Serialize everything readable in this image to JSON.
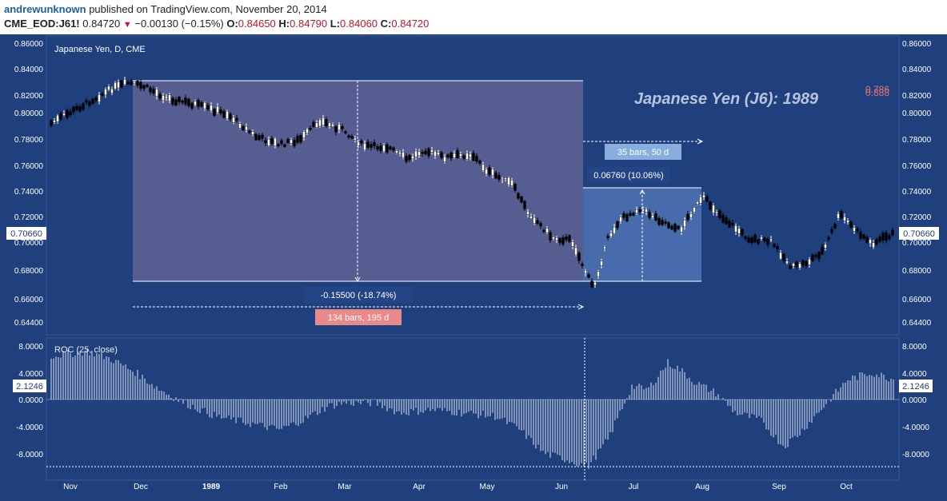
{
  "header": {
    "author": "andrewunknown",
    "published": "published on TradingView.com, November 20, 2014",
    "symbol": "CME_EOD:J61!",
    "last": "0.84720",
    "change_arrow": "▼",
    "change": "−0.00130 (−0.15%)",
    "o_label": "O:",
    "o_value": "0.84650",
    "h_label": "H:",
    "h_value": "0.84790",
    "l_label": "L:",
    "l_value": "0.84060",
    "c_label": "C:",
    "c_value": "0.84720"
  },
  "chart": {
    "legend": "Japanese Yen, D, CME",
    "watermark": "Japanese Yen (J6): 1989",
    "overlay_small": [
      "0.786",
      "0.888"
    ],
    "price_ticks": [
      "0.86000",
      "0.84000",
      "0.82000",
      "0.80000",
      "0.78000",
      "0.76000",
      "0.74000",
      "0.72000",
      "0.70000",
      "0.68000",
      "0.66000",
      "0.64400"
    ],
    "current_price_label": "0.70660",
    "osc_ticks": [
      "8.0000",
      "4.0000",
      "0.0000",
      "-4.0000",
      "-8.0000"
    ],
    "osc_current_label": "2.1246",
    "osc_legend": "ROC (25, close)",
    "months": [
      "Nov",
      "Dec",
      "1989",
      "Feb",
      "Mar",
      "Apr",
      "May",
      "Jun",
      "Jul",
      "Aug",
      "Sep",
      "Oct"
    ],
    "annotations": {
      "decline_price": "-0.15500 (-18.74%)",
      "decline_bars": "134 bars, 195 d",
      "rally_price": "0.06760 (10.06%)",
      "rally_bars": "35 bars, 50 d"
    },
    "colors": {
      "background": "#1f3f7d",
      "up_candle": "#ffffff",
      "down_candle": "#000000",
      "decline_box": "#5a5f93",
      "rally_box": "#4b6fae",
      "decline_label_bg": "#e8898a",
      "rally_label_bg": "#87aedd",
      "watermark": "#b8c4dd",
      "overlay_small": "#e07575"
    }
  },
  "chart_data": {
    "type": "candlestick",
    "title": "Japanese Yen, D, CME",
    "ylim": [
      0.644,
      0.86
    ],
    "approx_closes": [
      {
        "x": "Nov",
        "y": 0.794
      },
      {
        "x": "Nov-mid",
        "y": 0.808
      },
      {
        "x": "Dec",
        "y": 0.826
      },
      {
        "x": "Dec-mid",
        "y": 0.812
      },
      {
        "x": "1989",
        "y": 0.803
      },
      {
        "x": "Jan-mid",
        "y": 0.788
      },
      {
        "x": "Feb",
        "y": 0.772
      },
      {
        "x": "Feb-mid",
        "y": 0.792
      },
      {
        "x": "Mar",
        "y": 0.776
      },
      {
        "x": "Mar-mid",
        "y": 0.77
      },
      {
        "x": "Apr",
        "y": 0.763
      },
      {
        "x": "Apr-mid",
        "y": 0.766
      },
      {
        "x": "May",
        "y": 0.754
      },
      {
        "x": "May-mid",
        "y": 0.73
      },
      {
        "x": "Jun",
        "y": 0.702
      },
      {
        "x": "Jun-low",
        "y": 0.672
      },
      {
        "x": "Jul",
        "y": 0.725
      },
      {
        "x": "Jul-mid",
        "y": 0.715
      },
      {
        "x": "Aug",
        "y": 0.737
      },
      {
        "x": "Aug-mid",
        "y": 0.706
      },
      {
        "x": "Sep",
        "y": 0.682
      },
      {
        "x": "Sep-mid",
        "y": 0.69
      },
      {
        "x": "Oct",
        "y": 0.718
      },
      {
        "x": "Oct-end",
        "y": 0.706
      }
    ],
    "oscillator": {
      "name": "ROC (25, close)",
      "ylim": [
        -10,
        8
      ],
      "last": 2.1246
    }
  }
}
